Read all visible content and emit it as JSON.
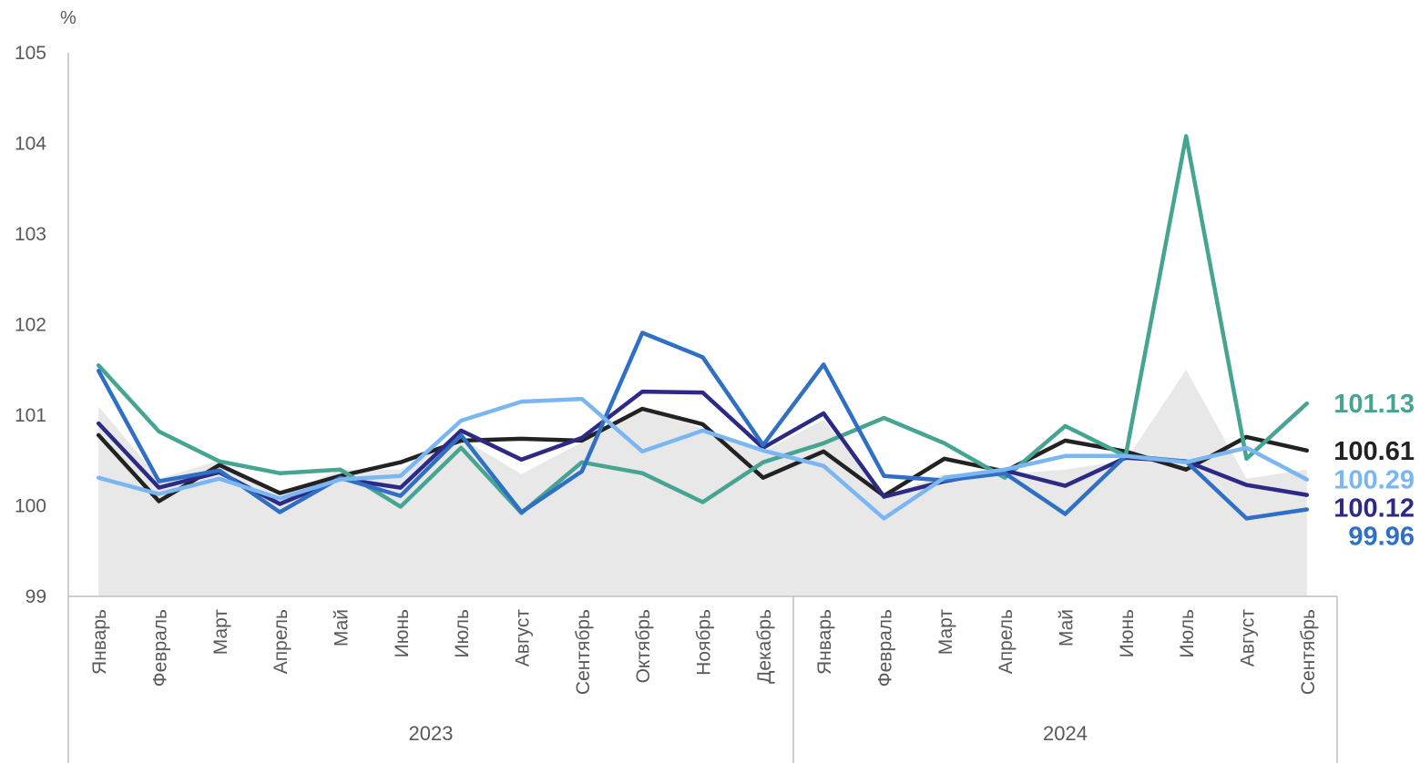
{
  "chart_data": {
    "type": "line",
    "unit_label": "%",
    "ylim": [
      99,
      105
    ],
    "y_ticks": [
      99,
      100,
      101,
      102,
      103,
      104,
      105
    ],
    "grid": false,
    "categories": [
      "Январь",
      "Февраль",
      "Март",
      "Апрель",
      "Май",
      "Июнь",
      "Июль",
      "Август",
      "Сентябрь",
      "Октябрь",
      "Ноябрь",
      "Декабрь",
      "Январь",
      "Февраль",
      "Март",
      "Апрель",
      "Май",
      "Июнь",
      "Июль",
      "Август",
      "Сентябрь"
    ],
    "groups": [
      {
        "label": "2023",
        "start": 0,
        "end": 11
      },
      {
        "label": "2024",
        "start": 12,
        "end": 20
      }
    ],
    "area_series": {
      "color": "#e8e8e8",
      "values": [
        101.1,
        100.3,
        100.5,
        100.1,
        100.4,
        100.4,
        100.75,
        100.35,
        100.7,
        101.1,
        100.85,
        100.6,
        100.95,
        100.1,
        100.35,
        100.35,
        100.4,
        100.5,
        101.5,
        100.3,
        100.4
      ]
    },
    "series": [
      {
        "color": "#222222",
        "label": "100.61",
        "values": [
          100.78,
          100.05,
          100.45,
          100.14,
          100.33,
          100.48,
          100.72,
          100.74,
          100.72,
          101.07,
          100.9,
          100.31,
          100.6,
          100.11,
          100.52,
          100.38,
          100.72,
          100.6,
          100.4,
          100.76,
          100.61
        ]
      },
      {
        "color": "#46a592",
        "label": "101.13",
        "values": [
          101.55,
          100.82,
          100.49,
          100.36,
          100.4,
          99.99,
          100.64,
          99.92,
          100.48,
          100.36,
          100.04,
          100.48,
          100.69,
          100.97,
          100.69,
          100.31,
          100.88,
          100.55,
          104.08,
          100.52,
          101.13
        ]
      },
      {
        "color": "#2d2a86",
        "label": "100.12",
        "values": [
          100.91,
          100.2,
          100.37,
          100.02,
          100.3,
          100.2,
          100.83,
          100.51,
          100.75,
          101.26,
          101.25,
          100.64,
          101.02,
          100.1,
          100.27,
          100.39,
          100.22,
          100.53,
          100.49,
          100.23,
          100.12
        ]
      },
      {
        "color": "#3070c4",
        "label": "99.96",
        "values": [
          101.49,
          100.27,
          100.39,
          99.93,
          100.31,
          100.11,
          100.78,
          99.93,
          100.38,
          101.91,
          101.64,
          100.67,
          101.56,
          100.33,
          100.28,
          100.36,
          99.91,
          100.55,
          100.49,
          99.86,
          99.96
        ]
      },
      {
        "color": "#7ab7f2",
        "label": "100.29",
        "values": [
          100.31,
          100.13,
          100.3,
          100.08,
          100.29,
          100.33,
          100.94,
          101.15,
          101.18,
          100.6,
          100.83,
          100.61,
          100.44,
          99.86,
          100.31,
          100.4,
          100.55,
          100.55,
          100.48,
          100.64,
          100.29
        ]
      }
    ]
  }
}
